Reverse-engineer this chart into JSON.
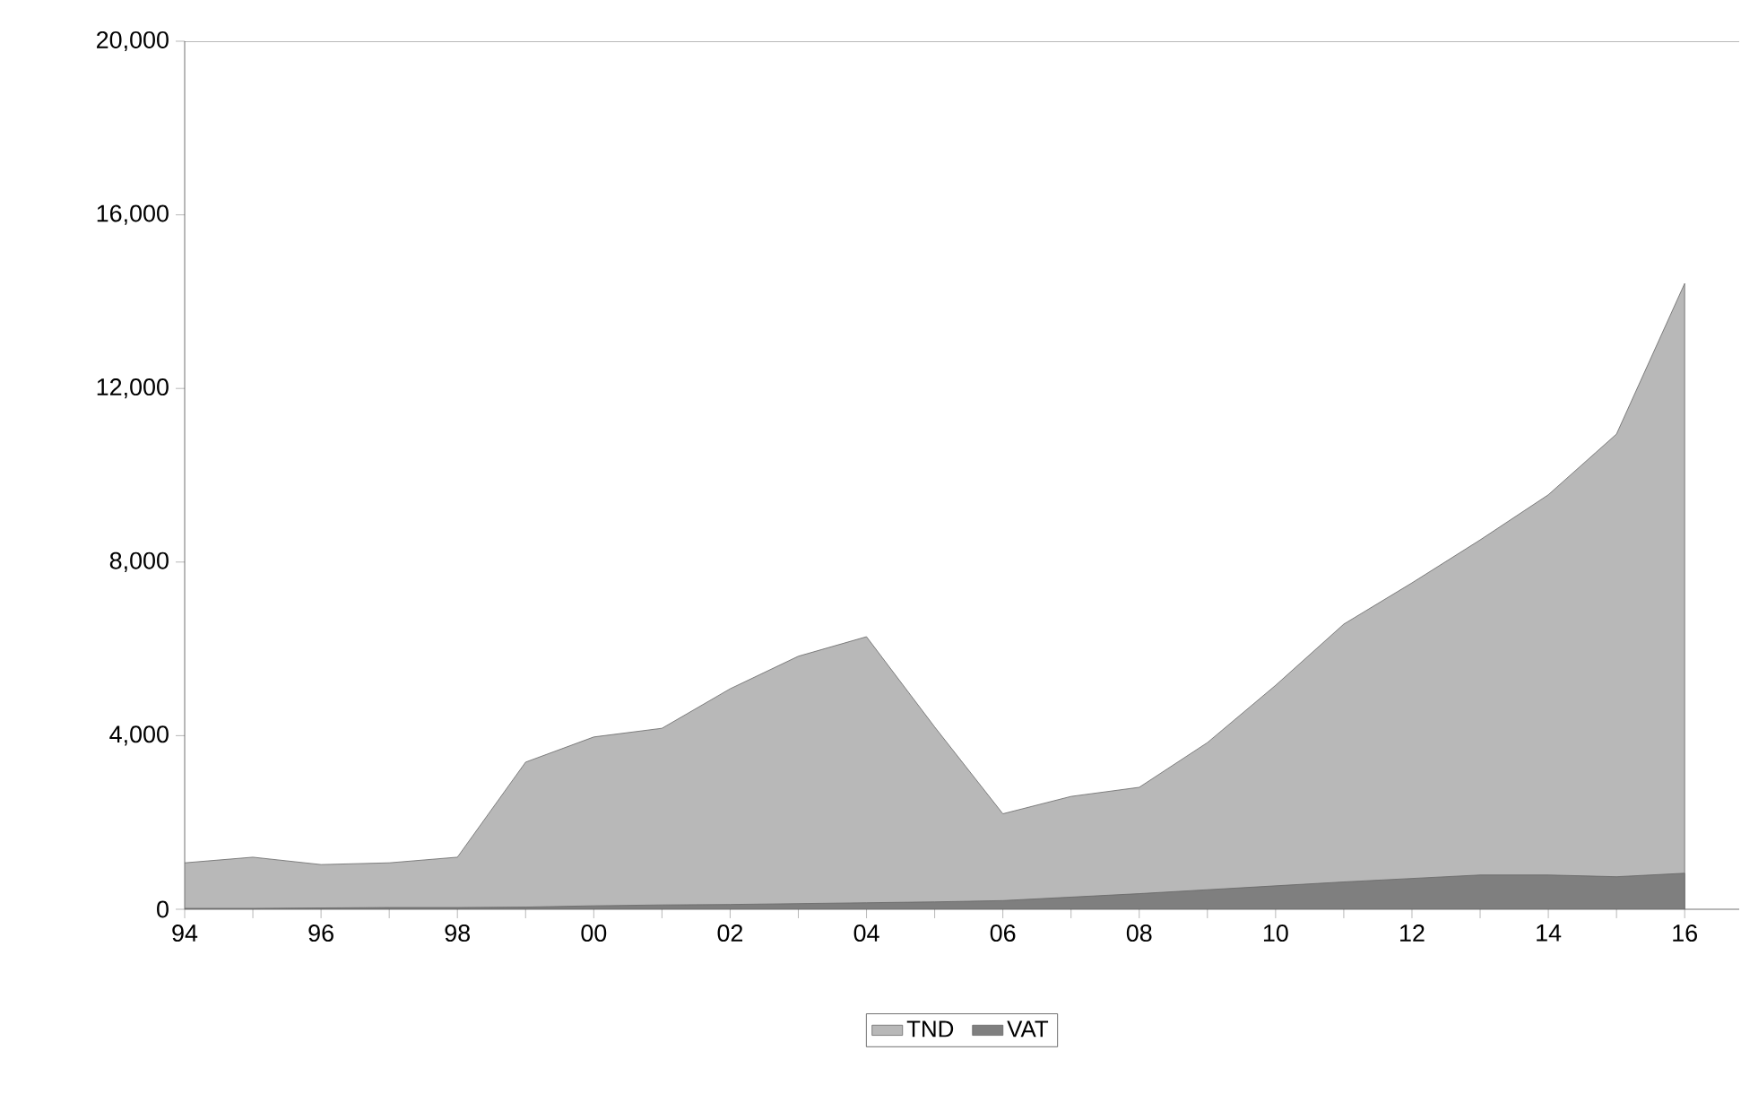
{
  "chart_data": {
    "type": "area",
    "series": [
      {
        "name": "TND",
        "color": "#b8b8b8",
        "values": [
          1070,
          1200,
          1030,
          1070,
          1200,
          3390,
          3970,
          4170,
          5080,
          5830,
          6280,
          4200,
          2200,
          2600,
          2810,
          3840,
          5160,
          6570,
          7520,
          8510,
          9550,
          10950,
          14420
        ]
      },
      {
        "name": "VAT",
        "color": "#7f7f7f",
        "values": [
          20,
          20,
          30,
          40,
          40,
          50,
          80,
          100,
          110,
          130,
          150,
          170,
          200,
          280,
          360,
          450,
          540,
          630,
          710,
          790,
          790,
          750,
          830
        ]
      }
    ],
    "categories": [
      "94",
      null,
      "96",
      null,
      "98",
      null,
      "00",
      null,
      "02",
      null,
      "04",
      null,
      "06",
      null,
      "08",
      null,
      "10",
      null,
      "12",
      null,
      "14",
      null,
      "16"
    ],
    "ylim": [
      0,
      20000
    ],
    "yticks": [
      0,
      {
        "value": 4000,
        "label": "4,000"
      },
      {
        "value": 8000,
        "label": "8,000"
      },
      {
        "value": 12000,
        "label": "12,000"
      },
      {
        "value": 16000,
        "label": "16,000"
      },
      {
        "value": 20000,
        "label": "20,000"
      }
    ],
    "legend": "bottom"
  }
}
